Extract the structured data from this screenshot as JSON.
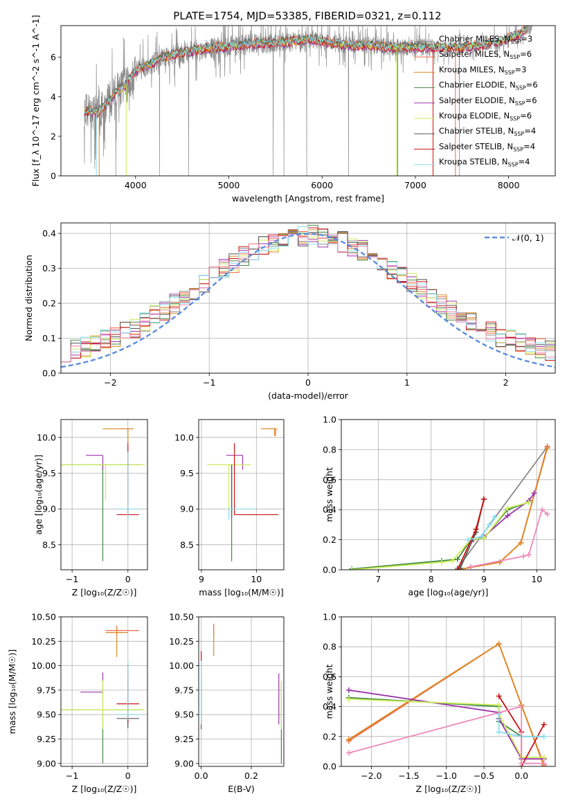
{
  "figure": {
    "title": "PLATE=1754, MJD=53385, FIBERID=0321, z=0.112"
  },
  "models": [
    {
      "name": "Chabrier MILES",
      "nssp": "3",
      "color": "#888888"
    },
    {
      "name": "Salpeter MILES",
      "nssp": "6",
      "color": "#ee6644"
    },
    {
      "name": "Kroupa MILES",
      "nssp": "3",
      "color": "#dd8822"
    },
    {
      "name": "Chabrier ELODIE",
      "nssp": "6",
      "color": "#448844"
    },
    {
      "name": "Salpeter ELODIE",
      "nssp": "6",
      "color": "#9933aa"
    },
    {
      "name": "Kroupa ELODIE",
      "nssp": "6",
      "color": "#ccee55"
    },
    {
      "name": "Chabrier STELIB",
      "nssp": "4",
      "color": "#555555"
    },
    {
      "name": "Salpeter STELIB",
      "nssp": "4",
      "color": "#cc1111"
    },
    {
      "name": "Kroupa STELIB",
      "nssp": "4",
      "color": "#88ddee"
    }
  ],
  "chart_data": [
    {
      "id": "spectrum",
      "type": "line",
      "xlabel": "wavelength [Angstrom, rest frame]",
      "ylabel": "Flux [f_λ 10^-17 erg cm^-2 s^-1 A^-1]",
      "xlim": [
        3200,
        8500
      ],
      "ylim": [
        0,
        7.6
      ],
      "xticks": [
        "4000",
        "5000",
        "6000",
        "7000",
        "8000"
      ],
      "yticks": [
        "0",
        "2",
        "4",
        "6"
      ],
      "continuum": {
        "x": [
          3450,
          3600,
          3700,
          3800,
          3900,
          4000,
          4100,
          4300,
          4500,
          4700,
          4900,
          5100,
          5300,
          5500,
          5700,
          5900,
          6100,
          6300,
          6500,
          6700,
          6900,
          7100,
          7300,
          7500,
          7700,
          7900,
          8100,
          8250
        ],
        "y": [
          3.3,
          3.2,
          3.7,
          4.3,
          4.6,
          5.3,
          5.5,
          6.0,
          6.2,
          6.4,
          6.5,
          6.6,
          6.7,
          6.7,
          6.8,
          6.9,
          6.7,
          6.6,
          6.6,
          6.5,
          6.5,
          6.5,
          6.5,
          6.5,
          6.6,
          6.8,
          7.1,
          7.6
        ]
      },
      "grid": false,
      "legend": "top-right"
    },
    {
      "id": "residuals",
      "type": "histogram",
      "xlabel": "(data-model)/error",
      "ylabel": "Normed distribution",
      "xlim": [
        -2.5,
        2.5
      ],
      "ylim": [
        0,
        0.43
      ],
      "xticks": [
        "−2",
        "−1",
        "0",
        "1",
        "2"
      ],
      "yticks": [
        "0.0",
        "0.1",
        "0.2",
        "0.3",
        "0.4"
      ],
      "reference_label": "𝒩(0, 1)",
      "grid": true,
      "legend": "top-right"
    },
    {
      "id": "age-vs-Z",
      "type": "scatter",
      "xlabel": "Z [log₁₀(Z/Z☉)]",
      "ylabel": "age  [log₁₀(age/yr)]",
      "xlim": [
        -1.2,
        0.35
      ],
      "ylim": [
        8.15,
        10.25
      ],
      "xticks": [
        "−1",
        "0"
      ],
      "yticks": [
        "8.5",
        "9.0",
        "9.5",
        "10.0"
      ],
      "points": [
        {
          "model": 1,
          "x": 0.0,
          "xerr": [
            0.15,
            0.1
          ],
          "y": 10.12,
          "yerr": [
            0.05,
            0.0
          ]
        },
        {
          "model": 2,
          "x": 0.0,
          "xerr": [
            0.45,
            0.1
          ],
          "y": 10.12,
          "yerr": [
            0.2,
            0.0
          ]
        },
        {
          "model": 3,
          "x": -0.45,
          "xerr": [
            0.75,
            0.7
          ],
          "y": 9.62,
          "yerr": [
            1.35,
            0.0
          ]
        },
        {
          "model": 4,
          "x": -0.45,
          "xerr": [
            0.3,
            0.0
          ],
          "y": 9.75,
          "yerr": [
            0.2,
            0.0
          ]
        },
        {
          "model": 5,
          "x": -0.4,
          "xerr": [
            0.8,
            0.7
          ],
          "y": 9.62,
          "yerr": [
            0.5,
            0.0
          ]
        },
        {
          "model": 6,
          "x": -0.05,
          "xerr": [
            0.0,
            0.0
          ],
          "y": 9.0,
          "yerr": [
            0.0,
            0.0
          ]
        },
        {
          "model": 7,
          "x": 0.0,
          "xerr": [
            0.2,
            0.2
          ],
          "y": 8.92,
          "yerr": [
            0.0,
            1.0
          ]
        },
        {
          "model": 8,
          "x": 0.0,
          "xerr": [
            0.2,
            0.2
          ],
          "y": 9.0,
          "yerr": [
            0.15,
            0.8
          ]
        }
      ]
    },
    {
      "id": "age-vs-mass",
      "type": "scatter",
      "xlabel": "mass [log₁₀(M/M☉)]",
      "ylabel": "",
      "xlim": [
        8.95,
        10.5
      ],
      "ylim": [
        8.15,
        10.25
      ],
      "xticks": [
        "9",
        "10"
      ],
      "yticks": [
        "8.5",
        "9.0",
        "9.5",
        "10.0"
      ],
      "points": [
        {
          "model": 1,
          "x": 10.35,
          "xerr": [
            0.1,
            0.0
          ],
          "y": 10.12,
          "yerr": [
            0.1,
            0.0
          ]
        },
        {
          "model": 2,
          "x": 10.33,
          "xerr": [
            0.25,
            0.05
          ],
          "y": 10.12,
          "yerr": [
            0.1,
            0.0
          ]
        },
        {
          "model": 3,
          "x": 9.55,
          "xerr": [
            0.0,
            0.0
          ],
          "y": 9.62,
          "yerr": [
            1.35,
            0.0
          ]
        },
        {
          "model": 4,
          "x": 9.75,
          "xerr": [
            0.3,
            0.0
          ],
          "y": 9.75,
          "yerr": [
            0.2,
            0.0
          ]
        },
        {
          "model": 5,
          "x": 9.5,
          "xerr": [
            0.4,
            0.4
          ],
          "y": 9.62,
          "yerr": [
            0.7,
            0.0
          ]
        },
        {
          "model": 6,
          "x": 9.55,
          "xerr": [
            0.0,
            0.0
          ],
          "y": 9.62,
          "yerr": [
            0.75,
            0.0
          ]
        },
        {
          "model": 7,
          "x": 9.6,
          "xerr": [
            0.0,
            0.8
          ],
          "y": 8.92,
          "yerr": [
            0.0,
            1.0
          ]
        },
        {
          "model": 8,
          "x": 9.5,
          "xerr": [
            0.0,
            0.5
          ],
          "y": 9.0,
          "yerr": [
            0.15,
            0.0
          ]
        }
      ]
    },
    {
      "id": "weight-vs-age",
      "type": "line",
      "xlabel": "age  [log₁₀(age/yr)]",
      "ylabel": "mass weight",
      "xlim": [
        6.3,
        10.35
      ],
      "ylim": [
        0,
        1
      ],
      "xticks": [
        "7",
        "8",
        "9",
        "10"
      ],
      "yticks": [
        "0.0",
        "0.2",
        "0.4",
        "0.6",
        "0.8",
        "1.0"
      ],
      "series": [
        {
          "model": 0,
          "x": [
            8.5,
            10.2
          ],
          "y": [
            0.01,
            0.82
          ]
        },
        {
          "model": 1,
          "x": [
            8.5,
            9.3,
            9.7,
            10.2
          ],
          "y": [
            0.0,
            0.05,
            0.18,
            0.82
          ]
        },
        {
          "model": 2,
          "x": [
            8.5,
            9.3,
            9.7,
            10.2
          ],
          "y": [
            0.0,
            0.05,
            0.18,
            0.81
          ]
        },
        {
          "model": 3,
          "x": [
            6.5,
            8.2,
            8.5,
            8.75,
            9.0,
            9.45,
            9.85
          ],
          "y": [
            0.005,
            0.06,
            0.07,
            0.2,
            0.21,
            0.4,
            0.45
          ]
        },
        {
          "model": 4,
          "x": [
            8.8,
            9.0,
            9.45,
            9.85,
            9.95
          ],
          "y": [
            0.2,
            0.22,
            0.36,
            0.46,
            0.51
          ]
        },
        {
          "model": 5,
          "x": [
            6.5,
            8.2,
            8.4,
            8.75,
            9.0,
            9.45,
            9.85
          ],
          "y": [
            0.0,
            0.05,
            0.06,
            0.2,
            0.21,
            0.41,
            0.45
          ]
        },
        {
          "model": 6,
          "x": [
            8.55,
            8.85,
            9.0
          ],
          "y": [
            0.01,
            0.25,
            0.47
          ]
        },
        {
          "model": 7,
          "x": [
            8.5,
            8.85,
            9.0
          ],
          "y": [
            0.0,
            0.27,
            0.47
          ]
        },
        {
          "model": 8,
          "x": [
            8.7,
            8.95,
            9.1,
            9.2
          ],
          "y": [
            0.2,
            0.22,
            0.3,
            0.35
          ]
        }
      ],
      "extra": {
        "model": 9,
        "x": [
          8.75,
          9.75,
          9.85,
          10.1,
          10.2
        ],
        "y": [
          0.02,
          0.09,
          0.1,
          0.4,
          0.37
        ]
      },
      "grid": true
    },
    {
      "id": "mass-vs-Z",
      "type": "scatter",
      "xlabel": "Z [log₁₀(Z/Z☉)]",
      "ylabel": "mass [log₁₀(M/M☉)]",
      "xlim": [
        -1.2,
        0.35
      ],
      "ylim": [
        8.97,
        10.5
      ],
      "xticks": [
        "−1",
        "0"
      ],
      "yticks": [
        "9.00",
        "9.25",
        "9.50",
        "9.75",
        "10.00",
        "10.25",
        "10.50"
      ],
      "points": [
        {
          "model": 1,
          "x": -0.2,
          "xerr": [
            0.2,
            0.4
          ],
          "y": 10.36,
          "yerr": [
            0.05,
            0.05
          ]
        },
        {
          "model": 2,
          "x": -0.2,
          "xerr": [
            0.2,
            0.2
          ],
          "y": 10.34,
          "yerr": [
            0.25,
            0.05
          ]
        },
        {
          "model": 3,
          "x": -0.45,
          "xerr": [
            0.8,
            0.7
          ],
          "y": 9.55,
          "yerr": [
            0.55,
            0.0
          ]
        },
        {
          "model": 4,
          "x": -0.45,
          "xerr": [
            0.4,
            0.0
          ],
          "y": 9.73,
          "yerr": [
            0.15,
            0.2
          ]
        },
        {
          "model": 5,
          "x": -0.45,
          "xerr": [
            0.75,
            0.75
          ],
          "y": 9.55,
          "yerr": [
            0.2,
            0.3
          ]
        },
        {
          "model": 6,
          "x": 0.0,
          "xerr": [
            0.2,
            0.2
          ],
          "y": 9.46,
          "yerr": [
            0.1,
            0.35
          ]
        },
        {
          "model": 7,
          "x": 0.0,
          "xerr": [
            0.2,
            0.2
          ],
          "y": 9.61,
          "yerr": [
            0.2,
            0.4
          ]
        },
        {
          "model": 8,
          "x": 0.0,
          "xerr": [
            0.2,
            0.2
          ],
          "y": 9.5,
          "yerr": [
            0.05,
            0.55
          ]
        }
      ]
    },
    {
      "id": "mass-vs-EBV",
      "type": "scatter",
      "xlabel": "E(B-V)",
      "ylabel": "",
      "xlim": [
        -0.01,
        0.33
      ],
      "ylim": [
        8.97,
        10.5
      ],
      "xticks": [
        "0.0",
        "0.2"
      ],
      "yticks": [
        "9.00",
        "9.25",
        "9.50",
        "9.75",
        "10.00",
        "10.25",
        "10.50"
      ],
      "points": [
        {
          "model": 1,
          "x": 0.05,
          "y": 10.35,
          "yerr": [
            0.05,
            0.08
          ]
        },
        {
          "model": 2,
          "x": 0.05,
          "y": 10.3,
          "yerr": [
            0.2,
            0.05
          ]
        },
        {
          "model": 3,
          "x": 0.32,
          "y": 9.55,
          "yerr": [
            0.55,
            0.28
          ]
        },
        {
          "model": 4,
          "x": 0.31,
          "y": 9.7,
          "yerr": [
            0.3,
            0.22
          ]
        },
        {
          "model": 5,
          "x": 0.32,
          "y": 9.55,
          "yerr": [
            0.2,
            0.3
          ]
        },
        {
          "model": 6,
          "x": 0.0,
          "y": 9.5,
          "yerr": [
            0.15,
            0.35
          ]
        },
        {
          "model": 7,
          "x": 0.0,
          "y": 9.6,
          "yerr": [
            0.2,
            0.55
          ]
        },
        {
          "model": 8,
          "x": 0.0,
          "y": 9.6,
          "yerr": [
            0.2,
            0.45
          ]
        }
      ]
    },
    {
      "id": "weight-vs-Z",
      "type": "line",
      "xlabel": "Z [log₁₀(Z/Z☉)]",
      "ylabel": "mass weight",
      "xlim": [
        -2.4,
        0.45
      ],
      "ylim": [
        0,
        1
      ],
      "xticks": [
        "−2.0",
        "−1.5",
        "−1.0",
        "−0.5",
        "0.0"
      ],
      "yticks": [
        "0.0",
        "0.2",
        "0.4",
        "0.6",
        "0.8",
        "1.0"
      ],
      "series": [
        {
          "model": 1,
          "x": [
            -2.3,
            -0.3,
            0.0,
            0.3
          ],
          "y": [
            0.17,
            0.82,
            0.41,
            0.01
          ]
        },
        {
          "model": 2,
          "x": [
            -2.3,
            -0.3,
            0.0,
            0.3
          ],
          "y": [
            0.18,
            0.82,
            0.41,
            0.0
          ]
        },
        {
          "model": 3,
          "x": [
            -2.3,
            -0.3,
            -0.3,
            0.0,
            0.3
          ],
          "y": [
            0.46,
            0.4,
            0.3,
            0.2,
            0.2
          ]
        },
        {
          "model": 4,
          "x": [
            -2.3,
            -0.3,
            -0.3,
            0.0,
            0.3
          ],
          "y": [
            0.51,
            0.36,
            0.32,
            0.05,
            0.05
          ]
        },
        {
          "model": 5,
          "x": [
            -2.3,
            -0.3,
            -0.3,
            0.0,
            0.3
          ],
          "y": [
            0.45,
            0.41,
            0.35,
            0.06,
            0.06
          ]
        },
        {
          "model": 7,
          "x": [
            -0.3,
            0.0,
            0.0,
            0.3
          ],
          "y": [
            0.47,
            0.23,
            0.0,
            0.28
          ]
        },
        {
          "model": 8,
          "x": [
            -0.3,
            -0.3,
            0.0,
            0.3
          ],
          "y": [
            0.35,
            0.23,
            0.2,
            0.2
          ]
        }
      ],
      "extra": {
        "model": 9,
        "x": [
          -2.3,
          0.0,
          0.0,
          0.3
        ],
        "y": [
          0.09,
          0.4,
          0.02,
          0.02
        ]
      },
      "grid": true
    }
  ]
}
